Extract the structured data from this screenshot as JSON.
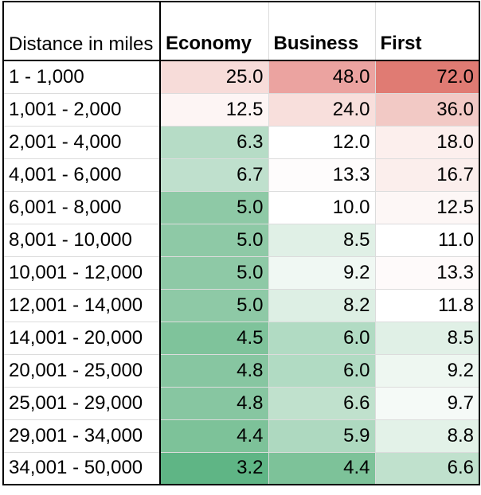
{
  "table": {
    "header": {
      "label": "Distance in miles",
      "columns": [
        "Economy",
        "Business",
        "First"
      ]
    },
    "rows": [
      {
        "range": "1 - 1,000",
        "values": [
          "25.0",
          "48.0",
          "72.0"
        ],
        "colors": [
          "#f7dcd9",
          "#eba3a0",
          "#e07b73"
        ]
      },
      {
        "range": "1,001 - 2,000",
        "values": [
          "12.5",
          "24.0",
          "36.0"
        ],
        "colors": [
          "#fdf5f4",
          "#f8dfdc",
          "#f2c9c5"
        ]
      },
      {
        "range": "2,001 - 4,000",
        "values": [
          "6.3",
          "12.0",
          "18.0"
        ],
        "colors": [
          "#b6dcc6",
          "#ffffff",
          "#fcefed"
        ]
      },
      {
        "range": "4,001 - 6,000",
        "values": [
          "6.7",
          "13.3",
          "16.7"
        ],
        "colors": [
          "#bfe0cd",
          "#fefcfc",
          "#fbeeec"
        ]
      },
      {
        "range": "6,001 - 8,000",
        "values": [
          "5.0",
          "10.0",
          "12.5"
        ],
        "colors": [
          "#8ec9a6",
          "#ffffff",
          "#fdf7f6"
        ]
      },
      {
        "range": "8,001 - 10,000",
        "values": [
          "5.0",
          "8.5",
          "11.0"
        ],
        "colors": [
          "#8ec9a6",
          "#e0f0e6",
          "#ffffff"
        ]
      },
      {
        "range": "10,001 - 12,000",
        "values": [
          "5.0",
          "9.2",
          "13.3"
        ],
        "colors": [
          "#8ec9a6",
          "#f0f8f3",
          "#fefafa"
        ]
      },
      {
        "range": "12,001 - 14,000",
        "values": [
          "5.0",
          "8.2",
          "11.8"
        ],
        "colors": [
          "#8ec9a6",
          "#ddefe4",
          "#ffffff"
        ]
      },
      {
        "range": "14,001 - 20,000",
        "values": [
          "4.5",
          "6.0",
          "8.5"
        ],
        "colors": [
          "#7fc39b",
          "#b1dbc3",
          "#e0f0e6"
        ]
      },
      {
        "range": "20,001 - 25,000",
        "values": [
          "4.8",
          "6.0",
          "9.2"
        ],
        "colors": [
          "#87c6a1",
          "#b1dbc3",
          "#eef7f1"
        ]
      },
      {
        "range": "25,001 - 29,000",
        "values": [
          "4.8",
          "6.6",
          "9.7"
        ],
        "colors": [
          "#87c6a1",
          "#c0e1cd",
          "#f5faf7"
        ]
      },
      {
        "range": "29,001 - 34,000",
        "values": [
          "4.4",
          "5.9",
          "8.8"
        ],
        "colors": [
          "#7dc299",
          "#aed9c0",
          "#e3f2e8"
        ]
      },
      {
        "range": "34,001 - 50,000",
        "values": [
          "3.2",
          "4.4",
          "6.6"
        ],
        "colors": [
          "#5fb585",
          "#7dc299",
          "#c0e1cd"
        ]
      }
    ]
  }
}
